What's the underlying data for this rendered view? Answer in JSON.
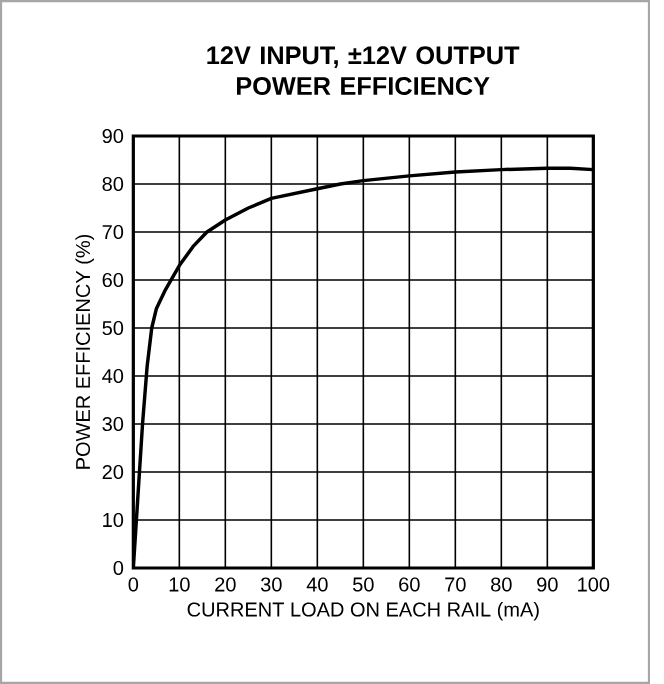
{
  "chart_data": {
    "type": "line",
    "title": "12V INPUT, ±12V OUTPUT\nPOWER EFFICIENCY",
    "xlabel": "CURRENT LOAD ON EACH RAIL (mA)",
    "ylabel": "POWER EFFICIENCY (%)",
    "xlim": [
      0,
      100
    ],
    "ylim": [
      0,
      90
    ],
    "xticks": [
      0,
      10,
      20,
      30,
      40,
      50,
      60,
      70,
      80,
      90,
      100
    ],
    "yticks": [
      0,
      10,
      20,
      30,
      40,
      50,
      60,
      70,
      80,
      90
    ],
    "grid": true,
    "series": [
      {
        "color": "#000000",
        "x": [
          0,
          1,
          2,
          3,
          4,
          5,
          7,
          10,
          13,
          16,
          20,
          25,
          30,
          35,
          40,
          45,
          50,
          60,
          70,
          80,
          90,
          95,
          100
        ],
        "values": [
          0,
          15,
          30,
          42,
          50,
          54,
          58,
          63,
          67,
          70,
          72.5,
          75,
          77,
          78,
          79,
          80,
          80.7,
          81.7,
          82.5,
          83,
          83.3,
          83.3,
          83
        ]
      }
    ]
  }
}
